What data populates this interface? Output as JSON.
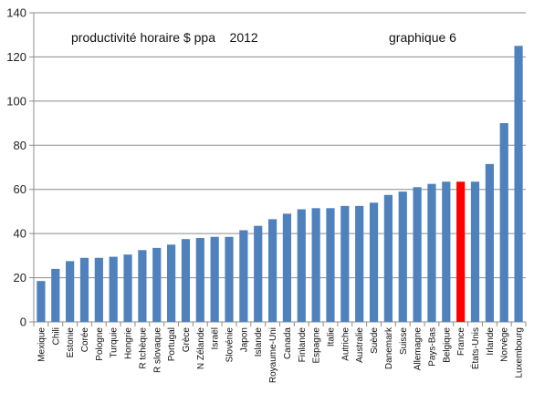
{
  "chart_data": {
    "type": "bar",
    "annotations": [
      "productivité horaire $ ppa    2012",
      "graphique 6"
    ],
    "xlabel": "",
    "ylabel": "",
    "ylim": [
      0,
      140
    ],
    "yticks": [
      0,
      20,
      40,
      60,
      80,
      100,
      120,
      140
    ],
    "grid": "horizontal",
    "legend": "none",
    "bar_color": "#4f81bd",
    "highlight_color": "#ff0000",
    "highlight_category": "France",
    "categories": [
      "Mexique",
      "Chili",
      "Estonie",
      "Corée",
      "Pologne",
      "Turquie",
      "Hongrie",
      "R tchèque",
      "R slovaque",
      "Portugal",
      "Grèce",
      "N Zélande",
      "Israël",
      "Slovénie",
      "Japon",
      "Islande",
      "Royaume-Uni",
      "Canada",
      "Finlande",
      "Espagne",
      "Italie",
      "Autriche",
      "Australie",
      "Suède",
      "Danemark",
      "Suisse",
      "Allemagne",
      "Pays-Bas",
      "Belgique",
      "France",
      "États-Unis",
      "Irlande",
      "Norvège",
      "Luxembourg"
    ],
    "values": [
      18.5,
      24,
      27.5,
      29,
      29,
      29.5,
      30.5,
      32.5,
      33.5,
      35,
      37.5,
      38,
      38.5,
      38.5,
      41.5,
      43.5,
      46.5,
      49,
      51,
      51.5,
      51.5,
      52.5,
      52.5,
      54,
      57.5,
      59,
      61,
      62.5,
      63.5,
      63.5,
      63.5,
      71.5,
      90,
      125
    ]
  }
}
